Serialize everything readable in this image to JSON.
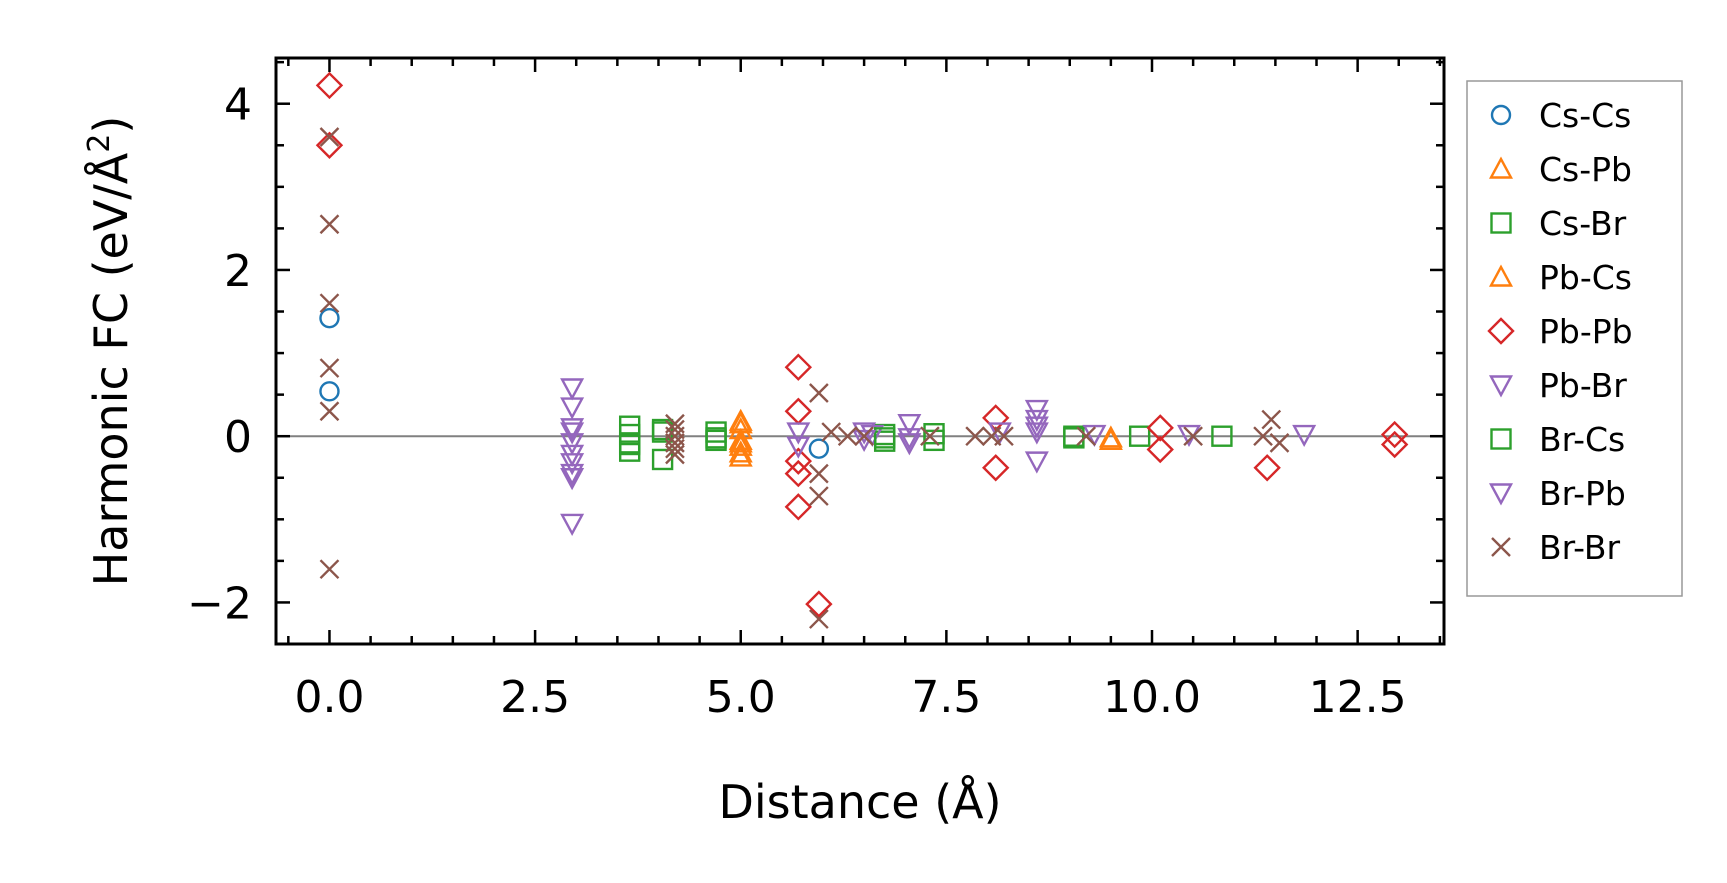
{
  "chart_data": {
    "type": "scatter",
    "title": "",
    "xlabel": "Distance (Å)",
    "ylabel_main": "Harmonic FC (eV/Å",
    "ylabel_sup": "2",
    "ylabel_close": ")",
    "xlim": [
      -0.65,
      13.55
    ],
    "ylim": [
      -2.5,
      4.55
    ],
    "xticks": [
      0.0,
      2.5,
      5.0,
      7.5,
      10.0,
      12.5
    ],
    "xtick_labels": [
      "0.0",
      "2.5",
      "5.0",
      "7.5",
      "10.0",
      "12.5"
    ],
    "yticks": [
      -2,
      0,
      2,
      4
    ],
    "ytick_labels": [
      "−2",
      "0",
      "2",
      "4"
    ],
    "grid": false,
    "legend_position": "outside-right",
    "series": [
      {
        "name": "Cs-Cs",
        "marker": "circle",
        "color": "#1f77b4",
        "x": [
          0.0,
          0.0,
          5.95
        ],
        "y": [
          1.42,
          0.54,
          -0.15
        ]
      },
      {
        "name": "Cs-Pb",
        "marker": "triangle-up",
        "color": "#ff7f0e",
        "x": [
          5.0,
          5.0,
          5.0,
          5.0,
          5.0,
          5.0,
          9.5
        ],
        "y": [
          0.18,
          0.08,
          -0.05,
          -0.12,
          -0.2,
          -0.25,
          -0.05
        ]
      },
      {
        "name": "Cs-Br",
        "marker": "square",
        "color": "#2ca02c",
        "x": [
          3.65,
          3.65,
          3.65,
          3.65,
          4.05,
          4.05,
          4.7,
          4.7,
          6.75,
          6.75,
          7.35,
          7.35,
          9.05,
          9.85,
          10.85
        ],
        "y": [
          0.12,
          0.02,
          -0.08,
          -0.18,
          -0.28,
          0.05,
          0.05,
          -0.05,
          0.02,
          -0.06,
          0.03,
          -0.05,
          0.0,
          0.0,
          0.0
        ]
      },
      {
        "name": "Pb-Cs",
        "marker": "triangle-up",
        "color": "#ff7f0e",
        "x": [
          5.0,
          5.0,
          9.5
        ],
        "y": [
          0.15,
          -0.08,
          -0.02
        ]
      },
      {
        "name": "Pb-Pb",
        "marker": "diamond",
        "color": "#d62728",
        "x": [
          0.0,
          0.0,
          5.7,
          5.7,
          5.7,
          5.7,
          5.7,
          5.95,
          8.1,
          8.1,
          10.1,
          10.1,
          11.4,
          12.95,
          12.95
        ],
        "y": [
          4.22,
          3.5,
          0.83,
          0.3,
          -0.3,
          -0.45,
          -0.85,
          -2.02,
          0.22,
          -0.38,
          0.1,
          -0.16,
          -0.38,
          0.02,
          -0.1
        ]
      },
      {
        "name": "Pb-Br",
        "marker": "triangle-down",
        "color": "#9467bd",
        "x": [
          2.95,
          2.95,
          2.95,
          2.95,
          2.95,
          2.95,
          2.95,
          2.95,
          5.7,
          5.7,
          6.5,
          6.6,
          7.05,
          7.05,
          8.15,
          8.6,
          8.6,
          8.6,
          9.3,
          11.85
        ],
        "y": [
          0.58,
          0.35,
          0.1,
          -0.08,
          -0.22,
          -0.32,
          -0.5,
          -1.05,
          0.05,
          -0.12,
          0.05,
          0.02,
          0.15,
          -0.02,
          0.05,
          0.32,
          0.12,
          -0.3,
          0.02,
          0.02
        ]
      },
      {
        "name": "Br-Cs",
        "marker": "square",
        "color": "#2ca02c",
        "x": [
          3.65,
          4.05,
          4.7,
          6.75,
          9.05
        ],
        "y": [
          -0.1,
          0.08,
          -0.02,
          -0.02,
          -0.02
        ]
      },
      {
        "name": "Br-Pb",
        "marker": "triangle-down",
        "color": "#9467bd",
        "x": [
          2.95,
          2.95,
          6.5,
          7.05,
          8.6,
          8.6,
          10.45
        ],
        "y": [
          0.05,
          -0.45,
          -0.04,
          -0.08,
          0.2,
          0.05,
          0.02
        ]
      },
      {
        "name": "Br-Br",
        "marker": "x",
        "color": "#8c564b",
        "x": [
          0.0,
          0.0,
          0.0,
          0.0,
          0.0,
          0.0,
          4.2,
          4.2,
          4.2,
          4.2,
          4.2,
          4.2,
          5.95,
          5.95,
          5.95,
          5.95,
          6.1,
          6.3,
          6.5,
          7.3,
          7.85,
          8.05,
          8.2,
          9.2,
          10.5,
          11.35,
          11.45,
          11.55
        ],
        "y": [
          3.6,
          2.55,
          1.6,
          0.82,
          0.3,
          -1.6,
          0.15,
          0.08,
          0.0,
          -0.08,
          -0.15,
          -0.22,
          0.52,
          -0.45,
          -0.72,
          -2.2,
          0.05,
          0.0,
          0.0,
          0.0,
          0.0,
          0.0,
          0.0,
          0.0,
          0.0,
          0.0,
          0.2,
          -0.08
        ]
      }
    ]
  }
}
